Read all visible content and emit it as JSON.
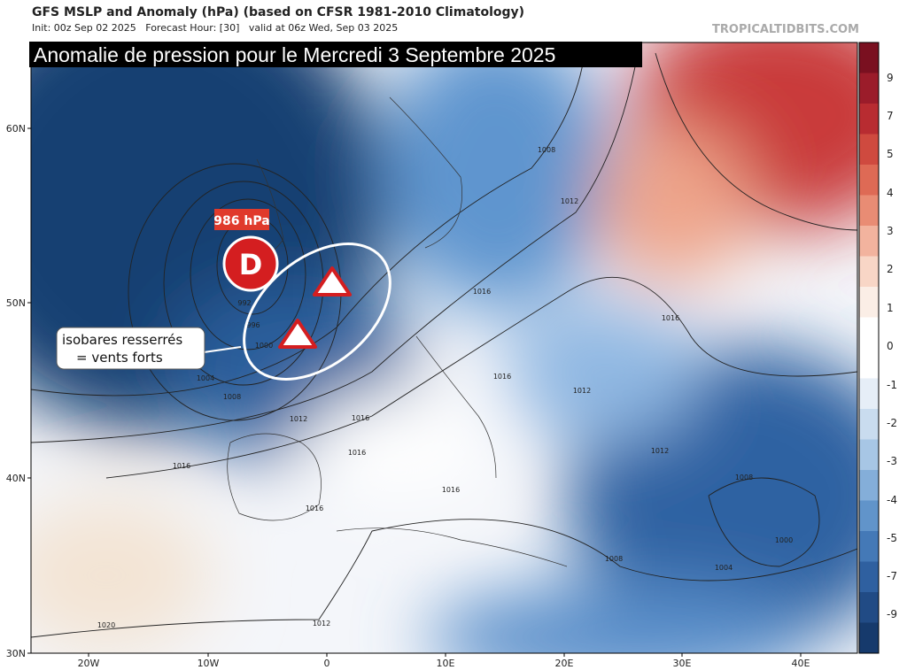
{
  "header": {
    "title": "GFS MSLP and Anomaly (hPa) (based on CFSR 1981-2010 Climatology)",
    "init": "Init: 00z Sep 02 2025   Forecast Hour: [30]   valid at 06z Wed, Sep 03 2025",
    "source": "TROPICALTIDBITS.COM"
  },
  "banner": "Anomalie de pression pour le Mercredi 3 Septembre 2025",
  "low": {
    "pressure": "986 hPa",
    "symbol": "D"
  },
  "annotation": {
    "line1": "isobares resserrés",
    "line2": "= vents forts"
  },
  "latitude_labels": [
    "60N",
    "50N",
    "40N",
    "30N"
  ],
  "longitude_labels": [
    "20W",
    "10W",
    "0",
    "10E",
    "20E",
    "30E",
    "40E"
  ],
  "colorbar_labels": [
    "9",
    "7",
    "5",
    "4",
    "3",
    "2",
    "1",
    "0",
    "-1",
    "-2",
    "-3",
    "-4",
    "-5",
    "-7",
    "-9"
  ],
  "isobar_labels": [
    "1008",
    "1012",
    "1016",
    "1016",
    "992",
    "996",
    "1000",
    "1004",
    "1008",
    "1012",
    "1016",
    "1016",
    "1016",
    "1016",
    "1016",
    "1016",
    "1012",
    "1012",
    "1008",
    "1000",
    "1004",
    "1008",
    "1012",
    "1020"
  ]
}
